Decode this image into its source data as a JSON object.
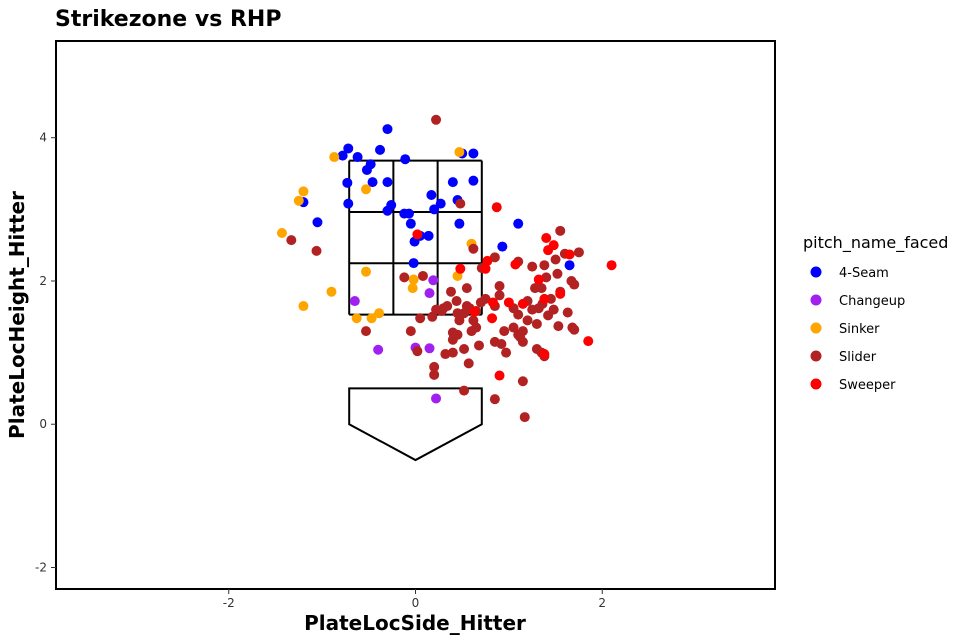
{
  "chart_data": {
    "type": "scatter",
    "title": "Strikezone vs RHP",
    "xlabel": "PlateLocSide_Hitter",
    "ylabel": "PlateLocHeight_Hitter",
    "xlim": [
      -3.85,
      3.85
    ],
    "ylim": [
      -2.3,
      5.35
    ],
    "x_ticks": [
      -2,
      0,
      2
    ],
    "y_ticks": [
      -2,
      0,
      2,
      4
    ],
    "grid": false,
    "legend": {
      "title": "pitch_name_faced",
      "position": "right"
    },
    "strike_zone": {
      "x_edges": [
        -0.71,
        -0.237,
        0.237,
        0.71
      ],
      "y_edges": [
        1.53,
        2.247,
        2.963,
        3.68
      ]
    },
    "home_plate": {
      "points": [
        [
          -0.71,
          0.5
        ],
        [
          0.71,
          0.5
        ],
        [
          0.71,
          0
        ],
        [
          0,
          -0.5
        ],
        [
          -0.71,
          0
        ]
      ]
    },
    "series": [
      {
        "name": "4-Seam",
        "color": "#0000ff",
        "points": [
          [
            -0.3,
            4.12
          ],
          [
            -0.72,
            3.85
          ],
          [
            -0.38,
            3.83
          ],
          [
            -0.62,
            3.73
          ],
          [
            -0.78,
            3.75
          ],
          [
            -0.11,
            3.7
          ],
          [
            -0.48,
            3.63
          ],
          [
            -0.52,
            3.55
          ],
          [
            0.62,
            3.78
          ],
          [
            0.5,
            3.78
          ],
          [
            -0.73,
            3.37
          ],
          [
            -0.46,
            3.38
          ],
          [
            -0.3,
            3.38
          ],
          [
            0.4,
            3.38
          ],
          [
            0.62,
            3.4
          ],
          [
            0.17,
            3.2
          ],
          [
            -0.26,
            3.06
          ],
          [
            0.27,
            3.08
          ],
          [
            -0.72,
            3.08
          ],
          [
            -1.2,
            3.1
          ],
          [
            0.45,
            3.13
          ],
          [
            -0.3,
            2.98
          ],
          [
            -0.07,
            2.94
          ],
          [
            -0.12,
            2.94
          ],
          [
            0.2,
            3.0
          ],
          [
            -1.05,
            2.82
          ],
          [
            0.47,
            2.8
          ],
          [
            -0.05,
            2.8
          ],
          [
            1.1,
            2.8
          ],
          [
            0.05,
            2.63
          ],
          [
            0.14,
            2.63
          ],
          [
            -0.01,
            2.55
          ],
          [
            0.93,
            2.48
          ],
          [
            1.65,
            2.22
          ],
          [
            -0.02,
            2.25
          ]
        ]
      },
      {
        "name": "Changeup",
        "color": "#a020f0",
        "points": [
          [
            0.19,
            2.01
          ],
          [
            0.15,
            1.83
          ],
          [
            -0.65,
            1.72
          ],
          [
            -0.4,
            1.04
          ],
          [
            0.0,
            1.07
          ],
          [
            0.15,
            1.06
          ],
          [
            0.22,
            0.36
          ]
        ]
      },
      {
        "name": "Sinker",
        "color": "#ffa500",
        "points": [
          [
            0.47,
            3.8
          ],
          [
            -0.87,
            3.73
          ],
          [
            -0.53,
            3.28
          ],
          [
            -1.2,
            3.25
          ],
          [
            -1.25,
            3.12
          ],
          [
            -1.43,
            2.67
          ],
          [
            0.6,
            2.52
          ],
          [
            -0.53,
            2.13
          ],
          [
            0.45,
            2.07
          ],
          [
            -0.02,
            2.02
          ],
          [
            -0.03,
            1.9
          ],
          [
            -0.9,
            1.85
          ],
          [
            -1.2,
            1.65
          ],
          [
            -0.39,
            1.55
          ],
          [
            -0.63,
            1.48
          ],
          [
            -0.47,
            1.48
          ]
        ]
      },
      {
        "name": "Slider",
        "color": "#b22222",
        "points": [
          [
            0.22,
            4.25
          ],
          [
            0.48,
            3.08
          ],
          [
            -1.33,
            2.57
          ],
          [
            -1.06,
            2.42
          ],
          [
            0.62,
            2.45
          ],
          [
            0.85,
            2.33
          ],
          [
            1.1,
            2.27
          ],
          [
            0.71,
            2.18
          ],
          [
            1.25,
            2.2
          ],
          [
            1.38,
            2.22
          ],
          [
            1.5,
            2.3
          ],
          [
            1.55,
            2.7
          ],
          [
            1.6,
            2.38
          ],
          [
            1.75,
            2.4
          ],
          [
            1.67,
            2.0
          ],
          [
            1.7,
            1.95
          ],
          [
            1.63,
            1.56
          ],
          [
            1.35,
            1.9
          ],
          [
            1.4,
            2.05
          ],
          [
            1.45,
            1.75
          ],
          [
            1.52,
            2.1
          ],
          [
            1.32,
            1.62
          ],
          [
            1.2,
            1.72
          ],
          [
            1.1,
            1.53
          ],
          [
            1.05,
            1.62
          ],
          [
            0.9,
            1.93
          ],
          [
            0.9,
            1.8
          ],
          [
            0.85,
            1.65
          ],
          [
            0.75,
            1.75
          ],
          [
            0.7,
            1.7
          ],
          [
            0.65,
            1.58
          ],
          [
            0.62,
            1.45
          ],
          [
            0.55,
            1.9
          ],
          [
            0.52,
            1.55
          ],
          [
            0.44,
            1.72
          ],
          [
            0.38,
            1.85
          ],
          [
            0.34,
            1.65
          ],
          [
            0.28,
            1.58
          ],
          [
            0.45,
            1.55
          ],
          [
            0.47,
            1.45
          ],
          [
            0.55,
            1.65
          ],
          [
            0.58,
            1.62
          ],
          [
            0.6,
            1.3
          ],
          [
            0.65,
            1.35
          ],
          [
            0.68,
            1.1
          ],
          [
            0.52,
            1.05
          ],
          [
            0.4,
            1.18
          ],
          [
            0.4,
            1.28
          ],
          [
            0.45,
            1.25
          ],
          [
            0.18,
            1.5
          ],
          [
            0.22,
            1.6
          ],
          [
            0.3,
            1.62
          ],
          [
            0.05,
            1.48
          ],
          [
            -0.05,
            1.3
          ],
          [
            0.02,
            1.02
          ],
          [
            0.08,
            2.07
          ],
          [
            -0.12,
            2.05
          ],
          [
            -0.53,
            1.3
          ],
          [
            0.4,
            1.0
          ],
          [
            0.32,
            0.98
          ],
          [
            0.2,
            0.8
          ],
          [
            0.2,
            0.69
          ],
          [
            0.85,
            1.15
          ],
          [
            0.92,
            1.12
          ],
          [
            0.97,
            1.0
          ],
          [
            1.05,
            1.35
          ],
          [
            1.1,
            1.25
          ],
          [
            1.15,
            1.3
          ],
          [
            1.2,
            1.45
          ],
          [
            1.25,
            1.6
          ],
          [
            1.3,
            1.4
          ],
          [
            1.15,
            1.15
          ],
          [
            1.3,
            1.05
          ],
          [
            1.35,
            1.0
          ],
          [
            1.38,
            0.95
          ],
          [
            1.42,
            1.52
          ],
          [
            1.48,
            1.6
          ],
          [
            1.53,
            1.37
          ],
          [
            1.68,
            1.35
          ],
          [
            1.7,
            1.32
          ],
          [
            1.55,
            1.85
          ],
          [
            1.36,
            1.68
          ],
          [
            1.28,
            1.9
          ],
          [
            1.12,
            1.22
          ],
          [
            0.85,
            0.35
          ],
          [
            0.52,
            0.47
          ],
          [
            1.15,
            0.6
          ],
          [
            1.17,
            0.1
          ],
          [
            0.57,
            0.85
          ],
          [
            0.95,
            1.3
          ]
        ]
      },
      {
        "name": "Sweeper",
        "color": "#ff0000",
        "points": [
          [
            0.87,
            3.03
          ],
          [
            0.02,
            2.65
          ],
          [
            0.77,
            2.28
          ],
          [
            1.07,
            2.23
          ],
          [
            1.4,
            2.6
          ],
          [
            1.48,
            2.5
          ],
          [
            1.42,
            2.43
          ],
          [
            1.65,
            2.37
          ],
          [
            2.1,
            2.22
          ],
          [
            0.75,
            2.17
          ],
          [
            0.48,
            2.17
          ],
          [
            1.32,
            2.02
          ],
          [
            1.0,
            1.7
          ],
          [
            1.15,
            1.68
          ],
          [
            1.38,
            1.75
          ],
          [
            1.55,
            1.82
          ],
          [
            0.83,
            1.7
          ],
          [
            0.63,
            1.57
          ],
          [
            0.82,
            1.48
          ],
          [
            1.85,
            1.16
          ],
          [
            0.9,
            0.68
          ],
          [
            1.38,
            0.98
          ]
        ]
      }
    ]
  }
}
